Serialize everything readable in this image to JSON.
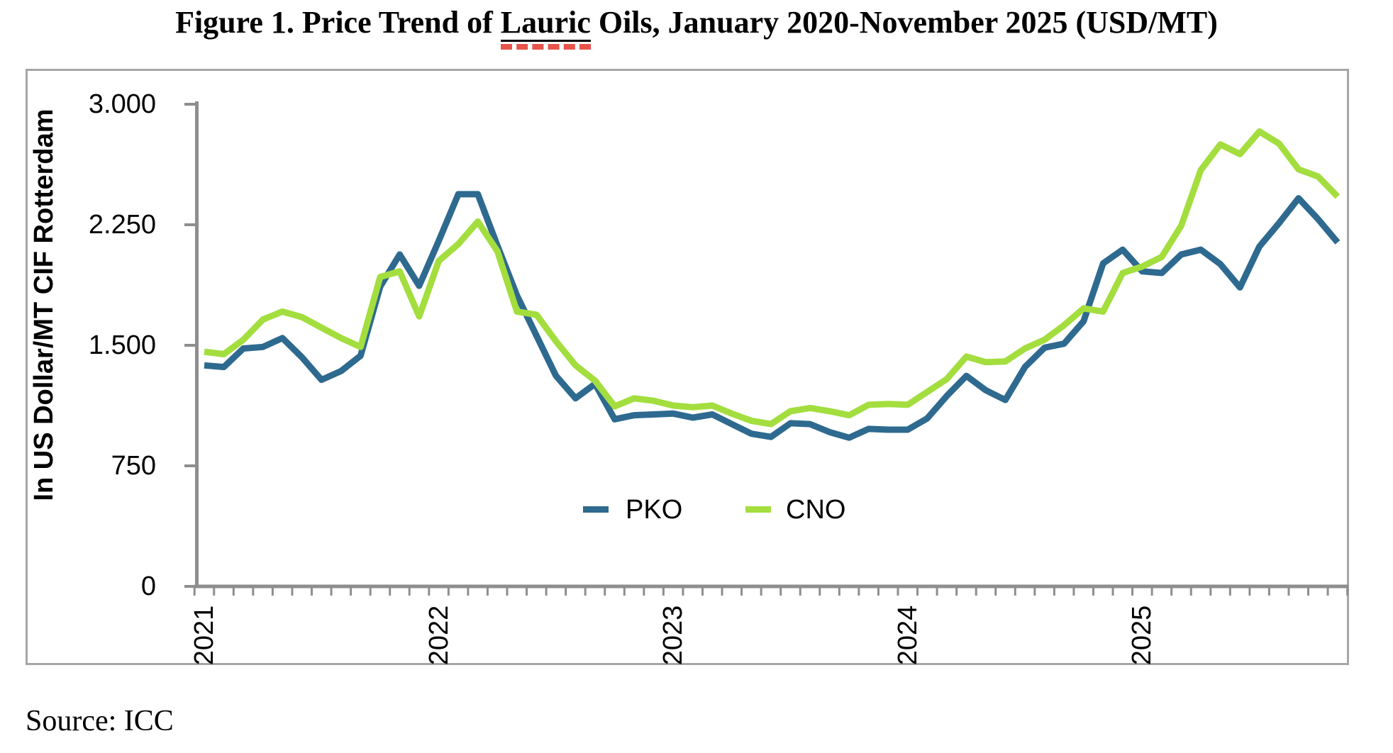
{
  "title": {
    "prefix": "Figure 1. Price Trend of ",
    "underlined_word": "Lauric",
    "suffix": " Oils, January 2020-November 2025 (USD/MT)"
  },
  "source_note": "Source: ICC",
  "colors": {
    "pko_line": "#2e6a8f",
    "cno_line": "#a3de3e",
    "axis_gray": "#8e8e8e",
    "border_gray": "#a6a6a6",
    "spellcheck_underline_red": "#e8544a"
  },
  "chart_data": {
    "type": "line",
    "title": "Figure 1. Price Trend of Lauric Oils, January 2020-November 2025 (USD/MT)",
    "xlabel": "",
    "ylabel": "In US Dollar/MT CIF Rotterdam",
    "ylim": [
      0,
      3000
    ],
    "grid": false,
    "ytick_values": [
      0,
      750,
      1500,
      2250,
      3000
    ],
    "ytick_labels": [
      "0",
      "750",
      "1.500",
      "2.250",
      "3.000"
    ],
    "xtick_labels": [
      "2021",
      "2022",
      "2023",
      "2024",
      "2025"
    ],
    "xtick_month_indices": [
      0,
      12,
      24,
      36,
      48
    ],
    "legend": {
      "position": "inside-bottom-center",
      "entries": [
        "PKO",
        "CNO"
      ]
    },
    "x": [
      "2021-01",
      "2021-02",
      "2021-03",
      "2021-04",
      "2021-05",
      "2021-06",
      "2021-07",
      "2021-08",
      "2021-09",
      "2021-10",
      "2021-11",
      "2021-12",
      "2022-01",
      "2022-02",
      "2022-03",
      "2022-04",
      "2022-05",
      "2022-06",
      "2022-07",
      "2022-08",
      "2022-09",
      "2022-10",
      "2022-11",
      "2022-12",
      "2023-01",
      "2023-02",
      "2023-03",
      "2023-04",
      "2023-05",
      "2023-06",
      "2023-07",
      "2023-08",
      "2023-09",
      "2023-10",
      "2023-11",
      "2023-12",
      "2024-01",
      "2024-02",
      "2024-03",
      "2024-04",
      "2024-05",
      "2024-06",
      "2024-07",
      "2024-08",
      "2024-09",
      "2024-10",
      "2024-11",
      "2024-12",
      "2025-01",
      "2025-02",
      "2025-03",
      "2025-04",
      "2025-05",
      "2025-06",
      "2025-07",
      "2025-08",
      "2025-09",
      "2025-10",
      "2025-11"
    ],
    "series": [
      {
        "name": "PKO",
        "color": "#2e6a8f",
        "values": [
          1375,
          1365,
          1480,
          1490,
          1545,
          1425,
          1285,
          1340,
          1435,
          1865,
          2065,
          1870,
          2150,
          2440,
          2440,
          2120,
          1810,
          1560,
          1310,
          1170,
          1260,
          1040,
          1065,
          1070,
          1075,
          1050,
          1070,
          1010,
          950,
          930,
          1015,
          1010,
          960,
          925,
          980,
          975,
          975,
          1045,
          1185,
          1310,
          1220,
          1160,
          1365,
          1485,
          1510,
          1650,
          2010,
          2095,
          1960,
          1950,
          2065,
          2095,
          2005,
          1860,
          2115,
          2260,
          2415,
          2285,
          2140
        ]
      },
      {
        "name": "CNO",
        "color": "#a3de3e",
        "values": [
          1460,
          1445,
          1535,
          1660,
          1710,
          1675,
          1610,
          1545,
          1490,
          1925,
          1960,
          1680,
          2025,
          2130,
          2270,
          2085,
          1710,
          1690,
          1525,
          1375,
          1280,
          1120,
          1170,
          1155,
          1125,
          1115,
          1125,
          1075,
          1030,
          1010,
          1090,
          1110,
          1090,
          1065,
          1130,
          1135,
          1130,
          1210,
          1290,
          1430,
          1395,
          1400,
          1480,
          1535,
          1625,
          1730,
          1710,
          1950,
          1990,
          2050,
          2245,
          2590,
          2750,
          2690,
          2830,
          2755,
          2595,
          2550,
          2425
        ]
      }
    ]
  },
  "legend_items": {
    "pko_label": "PKO",
    "cno_label": "CNO"
  }
}
